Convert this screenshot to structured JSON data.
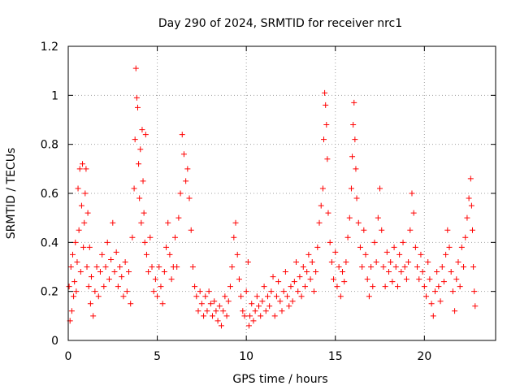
{
  "chart_data": {
    "type": "scatter",
    "title": "Day 290 of 2024, SRMTID for receiver nrc1",
    "xlabel": "GPS time / hours",
    "ylabel": "SRMTID / TECUs",
    "xlim": [
      0,
      24
    ],
    "ylim": [
      0,
      1.2
    ],
    "xticks": [
      0,
      5,
      10,
      15,
      20
    ],
    "xtick_labels": [
      "0",
      "5",
      "10",
      "15",
      "20"
    ],
    "yticks": [
      0,
      0.2,
      0.4,
      0.6,
      0.8,
      1,
      1.2
    ],
    "ytick_labels": [
      "0",
      "0.2",
      "0.4",
      "0.6",
      "0.8",
      "1",
      "1.2"
    ],
    "grid": true,
    "marker": "+",
    "color": "#ff0000",
    "series": [
      {
        "name": "nrc1",
        "points": [
          [
            0.05,
            0.22
          ],
          [
            0.1,
            0.08
          ],
          [
            0.15,
            0.3
          ],
          [
            0.2,
            0.12
          ],
          [
            0.25,
            0.35
          ],
          [
            0.3,
            0.18
          ],
          [
            0.35,
            0.24
          ],
          [
            0.4,
            0.4
          ],
          [
            0.45,
            0.2
          ],
          [
            0.5,
            0.32
          ],
          [
            0.55,
            0.62
          ],
          [
            0.6,
            0.45
          ],
          [
            0.65,
            0.7
          ],
          [
            0.7,
            0.28
          ],
          [
            0.75,
            0.55
          ],
          [
            0.8,
            0.72
          ],
          [
            0.85,
            0.38
          ],
          [
            0.9,
            0.48
          ],
          [
            0.95,
            0.6
          ],
          [
            1.0,
            0.7
          ],
          [
            1.05,
            0.3
          ],
          [
            1.1,
            0.52
          ],
          [
            1.15,
            0.22
          ],
          [
            1.2,
            0.38
          ],
          [
            1.25,
            0.15
          ],
          [
            1.3,
            0.26
          ],
          [
            1.4,
            0.1
          ],
          [
            1.5,
            0.2
          ],
          [
            1.6,
            0.3
          ],
          [
            1.7,
            0.18
          ],
          [
            1.8,
            0.28
          ],
          [
            1.9,
            0.35
          ],
          [
            2.0,
            0.22
          ],
          [
            2.1,
            0.3
          ],
          [
            2.2,
            0.4
          ],
          [
            2.3,
            0.25
          ],
          [
            2.4,
            0.33
          ],
          [
            2.5,
            0.48
          ],
          [
            2.6,
            0.28
          ],
          [
            2.7,
            0.36
          ],
          [
            2.8,
            0.22
          ],
          [
            2.9,
            0.3
          ],
          [
            3.0,
            0.26
          ],
          [
            3.1,
            0.18
          ],
          [
            3.2,
            0.32
          ],
          [
            3.3,
            0.2
          ],
          [
            3.4,
            0.28
          ],
          [
            3.5,
            0.15
          ],
          [
            3.6,
            0.42
          ],
          [
            3.7,
            0.62
          ],
          [
            3.75,
            0.82
          ],
          [
            3.8,
            1.11
          ],
          [
            3.85,
            0.99
          ],
          [
            3.9,
            0.95
          ],
          [
            3.95,
            0.72
          ],
          [
            4.0,
            0.58
          ],
          [
            4.05,
            0.78
          ],
          [
            4.1,
            0.48
          ],
          [
            4.15,
            0.86
          ],
          [
            4.2,
            0.65
          ],
          [
            4.25,
            0.52
          ],
          [
            4.3,
            0.4
          ],
          [
            4.35,
            0.84
          ],
          [
            4.4,
            0.35
          ],
          [
            4.5,
            0.28
          ],
          [
            4.6,
            0.42
          ],
          [
            4.7,
            0.3
          ],
          [
            4.8,
            0.2
          ],
          [
            4.9,
            0.25
          ],
          [
            5.0,
            0.18
          ],
          [
            5.1,
            0.3
          ],
          [
            5.2,
            0.22
          ],
          [
            5.3,
            0.15
          ],
          [
            5.4,
            0.28
          ],
          [
            5.5,
            0.38
          ],
          [
            5.6,
            0.48
          ],
          [
            5.7,
            0.35
          ],
          [
            5.8,
            0.25
          ],
          [
            5.9,
            0.3
          ],
          [
            6.0,
            0.42
          ],
          [
            6.1,
            0.3
          ],
          [
            6.2,
            0.5
          ],
          [
            6.3,
            0.6
          ],
          [
            6.4,
            0.84
          ],
          [
            6.5,
            0.76
          ],
          [
            6.6,
            0.65
          ],
          [
            6.7,
            0.7
          ],
          [
            6.8,
            0.58
          ],
          [
            6.9,
            0.45
          ],
          [
            7.0,
            0.3
          ],
          [
            7.1,
            0.22
          ],
          [
            7.2,
            0.18
          ],
          [
            7.3,
            0.12
          ],
          [
            7.4,
            0.2
          ],
          [
            7.5,
            0.15
          ],
          [
            7.6,
            0.1
          ],
          [
            7.7,
            0.18
          ],
          [
            7.8,
            0.12
          ],
          [
            7.9,
            0.2
          ],
          [
            8.0,
            0.15
          ],
          [
            8.1,
            0.1
          ],
          [
            8.2,
            0.16
          ],
          [
            8.3,
            0.12
          ],
          [
            8.4,
            0.08
          ],
          [
            8.5,
            0.14
          ],
          [
            8.6,
            0.06
          ],
          [
            8.7,
            0.12
          ],
          [
            8.8,
            0.18
          ],
          [
            8.9,
            0.1
          ],
          [
            9.0,
            0.16
          ],
          [
            9.1,
            0.22
          ],
          [
            9.2,
            0.3
          ],
          [
            9.3,
            0.42
          ],
          [
            9.4,
            0.48
          ],
          [
            9.5,
            0.35
          ],
          [
            9.6,
            0.25
          ],
          [
            9.7,
            0.18
          ],
          [
            9.8,
            0.12
          ],
          [
            9.9,
            0.1
          ],
          [
            10.0,
            0.2
          ],
          [
            10.1,
            0.32
          ],
          [
            10.15,
            0.06
          ],
          [
            10.2,
            0.1
          ],
          [
            10.3,
            0.15
          ],
          [
            10.4,
            0.08
          ],
          [
            10.5,
            0.12
          ],
          [
            10.6,
            0.18
          ],
          [
            10.7,
            0.14
          ],
          [
            10.8,
            0.1
          ],
          [
            10.9,
            0.16
          ],
          [
            11.0,
            0.22
          ],
          [
            11.1,
            0.12
          ],
          [
            11.2,
            0.18
          ],
          [
            11.3,
            0.14
          ],
          [
            11.4,
            0.2
          ],
          [
            11.5,
            0.26
          ],
          [
            11.6,
            0.1
          ],
          [
            11.7,
            0.18
          ],
          [
            11.8,
            0.24
          ],
          [
            11.9,
            0.16
          ],
          [
            12.0,
            0.12
          ],
          [
            12.1,
            0.2
          ],
          [
            12.2,
            0.28
          ],
          [
            12.3,
            0.18
          ],
          [
            12.4,
            0.14
          ],
          [
            12.5,
            0.22
          ],
          [
            12.6,
            0.16
          ],
          [
            12.7,
            0.24
          ],
          [
            12.8,
            0.32
          ],
          [
            12.9,
            0.2
          ],
          [
            13.0,
            0.26
          ],
          [
            13.1,
            0.18
          ],
          [
            13.2,
            0.3
          ],
          [
            13.3,
            0.22
          ],
          [
            13.4,
            0.28
          ],
          [
            13.5,
            0.35
          ],
          [
            13.6,
            0.25
          ],
          [
            13.7,
            0.32
          ],
          [
            13.8,
            0.2
          ],
          [
            13.9,
            0.28
          ],
          [
            14.0,
            0.38
          ],
          [
            14.1,
            0.48
          ],
          [
            14.2,
            0.55
          ],
          [
            14.3,
            0.62
          ],
          [
            14.35,
            0.82
          ],
          [
            14.4,
            1.01
          ],
          [
            14.45,
            0.96
          ],
          [
            14.5,
            0.88
          ],
          [
            14.55,
            0.74
          ],
          [
            14.6,
            0.52
          ],
          [
            14.7,
            0.4
          ],
          [
            14.8,
            0.32
          ],
          [
            14.9,
            0.25
          ],
          [
            15.0,
            0.36
          ],
          [
            15.1,
            0.22
          ],
          [
            15.2,
            0.3
          ],
          [
            15.3,
            0.18
          ],
          [
            15.4,
            0.28
          ],
          [
            15.5,
            0.24
          ],
          [
            15.6,
            0.32
          ],
          [
            15.7,
            0.42
          ],
          [
            15.8,
            0.5
          ],
          [
            15.9,
            0.62
          ],
          [
            15.95,
            0.75
          ],
          [
            16.0,
            0.88
          ],
          [
            16.05,
            0.97
          ],
          [
            16.1,
            0.82
          ],
          [
            16.15,
            0.7
          ],
          [
            16.2,
            0.58
          ],
          [
            16.3,
            0.48
          ],
          [
            16.4,
            0.38
          ],
          [
            16.5,
            0.3
          ],
          [
            16.6,
            0.45
          ],
          [
            16.7,
            0.35
          ],
          [
            16.8,
            0.25
          ],
          [
            16.9,
            0.18
          ],
          [
            17.0,
            0.3
          ],
          [
            17.1,
            0.22
          ],
          [
            17.2,
            0.4
          ],
          [
            17.3,
            0.32
          ],
          [
            17.4,
            0.5
          ],
          [
            17.5,
            0.62
          ],
          [
            17.6,
            0.45
          ],
          [
            17.7,
            0.3
          ],
          [
            17.8,
            0.22
          ],
          [
            17.9,
            0.36
          ],
          [
            18.0,
            0.28
          ],
          [
            18.1,
            0.32
          ],
          [
            18.2,
            0.24
          ],
          [
            18.3,
            0.38
          ],
          [
            18.4,
            0.3
          ],
          [
            18.5,
            0.22
          ],
          [
            18.6,
            0.35
          ],
          [
            18.7,
            0.28
          ],
          [
            18.8,
            0.4
          ],
          [
            18.9,
            0.3
          ],
          [
            19.0,
            0.25
          ],
          [
            19.1,
            0.32
          ],
          [
            19.2,
            0.45
          ],
          [
            19.3,
            0.6
          ],
          [
            19.4,
            0.52
          ],
          [
            19.5,
            0.38
          ],
          [
            19.6,
            0.3
          ],
          [
            19.7,
            0.25
          ],
          [
            19.8,
            0.35
          ],
          [
            19.9,
            0.28
          ],
          [
            20.0,
            0.22
          ],
          [
            20.1,
            0.18
          ],
          [
            20.2,
            0.32
          ],
          [
            20.3,
            0.25
          ],
          [
            20.4,
            0.15
          ],
          [
            20.5,
            0.1
          ],
          [
            20.6,
            0.2
          ],
          [
            20.7,
            0.28
          ],
          [
            20.8,
            0.22
          ],
          [
            20.9,
            0.16
          ],
          [
            21.0,
            0.3
          ],
          [
            21.1,
            0.24
          ],
          [
            21.2,
            0.35
          ],
          [
            21.3,
            0.45
          ],
          [
            21.4,
            0.38
          ],
          [
            21.5,
            0.28
          ],
          [
            21.6,
            0.2
          ],
          [
            21.7,
            0.12
          ],
          [
            21.8,
            0.25
          ],
          [
            21.9,
            0.32
          ],
          [
            22.0,
            0.22
          ],
          [
            22.1,
            0.38
          ],
          [
            22.2,
            0.3
          ],
          [
            22.3,
            0.42
          ],
          [
            22.4,
            0.5
          ],
          [
            22.5,
            0.58
          ],
          [
            22.6,
            0.66
          ],
          [
            22.65,
            0.55
          ],
          [
            22.7,
            0.45
          ],
          [
            22.75,
            0.3
          ],
          [
            22.8,
            0.2
          ],
          [
            22.85,
            0.14
          ]
        ]
      }
    ]
  }
}
